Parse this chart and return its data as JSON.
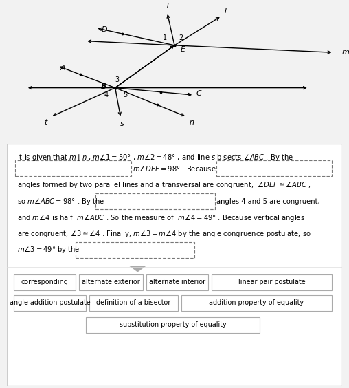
{
  "bg_color": "#f2f2f2",
  "panel_color": "#ffffff",
  "choice_boxes_row1": [
    "corresponding",
    "alternate exterior",
    "alternate interior",
    "linear pair postulate"
  ],
  "choice_boxes_row2": [
    "angle addition postulate",
    "definition of a bisector",
    "addition property of equality"
  ],
  "choice_boxes_row3": [
    "substitution property of equality"
  ]
}
